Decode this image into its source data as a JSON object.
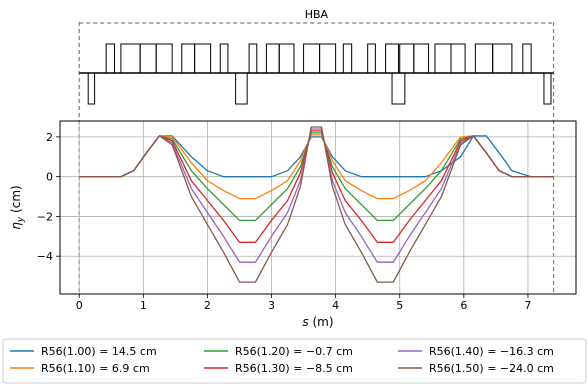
{
  "chart_data": {
    "type": "line",
    "lattice_label": "HBA",
    "xlabel": "s (m)",
    "ylabel": "η_y (cm)",
    "xlim": [
      -0.3,
      7.75
    ],
    "ylim": [
      -5.9,
      2.8
    ],
    "xticks": [
      0,
      1,
      2,
      3,
      4,
      5,
      6,
      7
    ],
    "yticks": [
      2,
      0,
      -2,
      -4
    ],
    "grid": true,
    "legend_position": "bottom",
    "boundaries": [
      0,
      7.4
    ],
    "x": [
      0,
      0.35,
      0.65,
      0.85,
      1.05,
      1.25,
      1.45,
      1.75,
      2.0,
      2.25,
      2.5,
      2.75,
      3.0,
      3.25,
      3.45,
      3.62,
      3.78,
      3.95,
      4.15,
      4.4,
      4.65,
      4.9,
      5.15,
      5.4,
      5.65,
      5.95,
      6.15,
      6.35,
      6.55,
      6.75,
      7.05,
      7.4
    ],
    "series": [
      {
        "name": "R56(1.00) = 14.5 cm",
        "color": "#1f77b4",
        "values": [
          0,
          0,
          0,
          0.3,
          1.2,
          2.05,
          2.05,
          1.0,
          0.3,
          0,
          0,
          0,
          0,
          0.3,
          1.0,
          2.0,
          2.0,
          1.0,
          0.3,
          0,
          0,
          0,
          0,
          0,
          0.3,
          1.0,
          2.05,
          2.05,
          1.2,
          0.3,
          0,
          0
        ]
      },
      {
        "name": "R56(1.10) = 6.9 cm",
        "color": "#ff7f0e",
        "values": [
          0,
          0,
          0,
          0.3,
          1.2,
          2.05,
          2.0,
          0.7,
          -0.2,
          -0.7,
          -1.1,
          -1.1,
          -0.7,
          -0.2,
          0.8,
          2.1,
          2.1,
          0.8,
          -0.2,
          -0.7,
          -1.1,
          -1.1,
          -0.7,
          -0.2,
          0.7,
          2.0,
          2.05,
          1.2,
          0.3,
          0,
          0,
          0
        ]
      },
      {
        "name": "R56(1.20) = −0.7 cm",
        "color": "#2ca02c",
        "values": [
          0,
          0,
          0,
          0.3,
          1.2,
          2.05,
          1.9,
          0.3,
          -0.6,
          -1.4,
          -2.2,
          -2.2,
          -1.4,
          -0.6,
          0.5,
          2.2,
          2.2,
          0.5,
          -0.6,
          -1.4,
          -2.2,
          -2.2,
          -1.4,
          -0.6,
          0.3,
          1.9,
          2.05,
          1.2,
          0.3,
          0,
          0,
          0
        ]
      },
      {
        "name": "R56(1.30) = −8.5 cm",
        "color": "#d62728",
        "values": [
          0,
          0,
          0,
          0.3,
          1.2,
          2.05,
          1.8,
          -0.2,
          -1.2,
          -2.2,
          -3.3,
          -3.3,
          -2.2,
          -1.2,
          0.2,
          2.3,
          2.3,
          0.2,
          -1.2,
          -2.2,
          -3.3,
          -3.3,
          -2.2,
          -1.2,
          -0.2,
          1.8,
          2.05,
          1.2,
          0.3,
          0,
          0,
          0
        ]
      },
      {
        "name": "R56(1.40) = −16.3 cm",
        "color": "#9467bd",
        "values": [
          0,
          0,
          0,
          0.3,
          1.2,
          2.05,
          1.7,
          -0.6,
          -1.8,
          -3.0,
          -4.3,
          -4.3,
          -3.0,
          -1.8,
          -0.2,
          2.4,
          2.4,
          -0.2,
          -1.8,
          -3.0,
          -4.3,
          -4.3,
          -3.0,
          -1.8,
          -0.6,
          1.7,
          2.05,
          1.2,
          0.3,
          0,
          0,
          0
        ]
      },
      {
        "name": "R56(1.50) = −24.0 cm",
        "color": "#8c564b",
        "values": [
          0,
          0,
          0,
          0.3,
          1.2,
          2.05,
          1.6,
          -1.0,
          -2.4,
          -3.8,
          -5.3,
          -5.3,
          -3.8,
          -2.4,
          -0.5,
          2.5,
          2.5,
          -0.5,
          -2.4,
          -3.8,
          -5.3,
          -5.3,
          -3.8,
          -2.4,
          -1.0,
          1.6,
          2.05,
          1.2,
          0.3,
          0,
          0,
          0
        ]
      }
    ],
    "lattice": {
      "dipoles_up": [
        [
          0.42,
          0.55
        ],
        [
          0.65,
          0.95
        ],
        [
          0.95,
          1.2
        ],
        [
          1.2,
          1.45
        ],
        [
          1.6,
          1.8
        ],
        [
          1.8,
          2.05
        ],
        [
          2.2,
          2.32
        ],
        [
          2.65,
          2.77
        ],
        [
          2.92,
          3.12
        ],
        [
          3.12,
          3.35
        ],
        [
          3.5,
          3.75
        ],
        [
          3.75,
          4.0
        ],
        [
          4.12,
          4.25
        ],
        [
          4.5,
          4.62
        ],
        [
          4.78,
          4.98
        ],
        [
          5.0,
          5.22
        ],
        [
          5.22,
          5.45
        ],
        [
          5.55,
          5.8
        ],
        [
          5.8,
          6.02
        ],
        [
          6.18,
          6.45
        ],
        [
          6.45,
          6.75
        ],
        [
          6.92,
          7.05
        ]
      ],
      "dipoles_down": [
        [
          0.14,
          0.24
        ],
        [
          2.44,
          2.62
        ],
        [
          4.88,
          5.08
        ],
        [
          7.25,
          7.36
        ]
      ]
    }
  }
}
